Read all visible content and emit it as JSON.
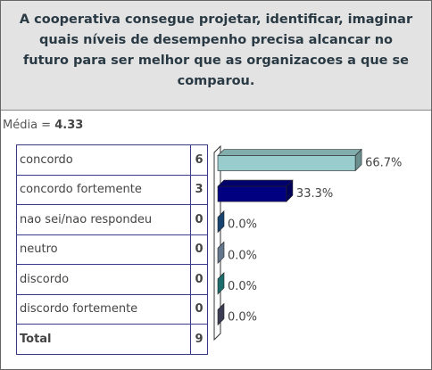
{
  "chart_data": {
    "type": "bar",
    "title": "A cooperativa consegue projetar, identificar, imaginar quais níveis de desempenho precisa alcancar no futuro para ser melhor que as organizacoes a que se comparou.",
    "mean_label": "Média =",
    "mean": 4.33,
    "categories": [
      "concordo",
      "concordo fortemente",
      "nao sei/nao respondeu",
      "neutro",
      "discordo",
      "discordo fortemente"
    ],
    "counts": [
      6,
      3,
      0,
      0,
      0,
      0
    ],
    "values": [
      66.7,
      33.3,
      0,
      0,
      0,
      0
    ],
    "value_labels": [
      "66.7%",
      "33.3%",
      "0.0%",
      "0.0%",
      "0.0%",
      "0.0%"
    ],
    "colors": [
      "#99cccc",
      "#000080",
      "#1f5f9f",
      "#8fa8c8",
      "#2a9a9a",
      "#555577"
    ],
    "total_label": "Total",
    "total": 9,
    "xlim": [
      0,
      100
    ]
  }
}
